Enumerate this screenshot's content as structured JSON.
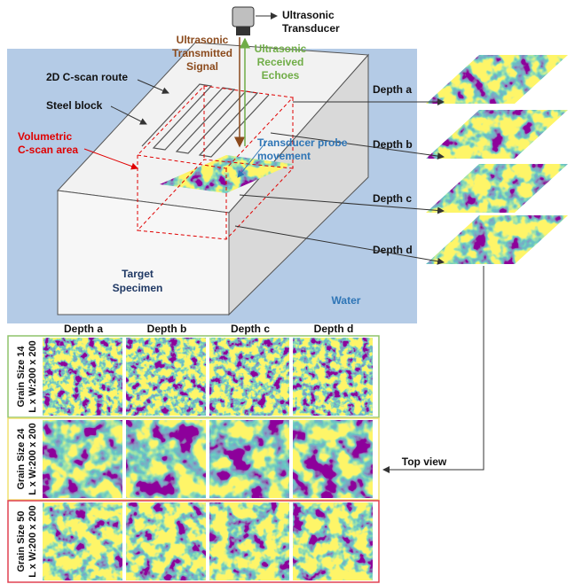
{
  "annotations": {
    "transducer": [
      "Ultrasonic",
      "Transducer"
    ],
    "transmitted": [
      "Ultrasonic",
      "Transmitted",
      "Signal"
    ],
    "received": [
      "Ultrasonic",
      "Received",
      "Echoes"
    ],
    "route": "2D C-scan route",
    "block": "Steel block",
    "volumetric": [
      "Volumetric",
      "C-scan area"
    ],
    "probe": [
      "Transducer probe",
      "movement"
    ],
    "specimen": [
      "Target",
      "Specimen"
    ],
    "water": "Water",
    "top_view": "Top view"
  },
  "depth_labels": [
    "Depth a",
    "Depth b",
    "Depth c",
    "Depth d"
  ],
  "grid": {
    "columns": [
      "Depth a",
      "Depth b",
      "Depth c",
      "Depth d"
    ],
    "rows": [
      {
        "label": [
          "Grain Size 14",
          "L x W:200 x 200"
        ]
      },
      {
        "label": [
          "Grain Size 24",
          "L x W:200 x 200"
        ]
      },
      {
        "label": [
          "Grain Size 50",
          "L x W:200 x 200"
        ]
      }
    ]
  }
}
